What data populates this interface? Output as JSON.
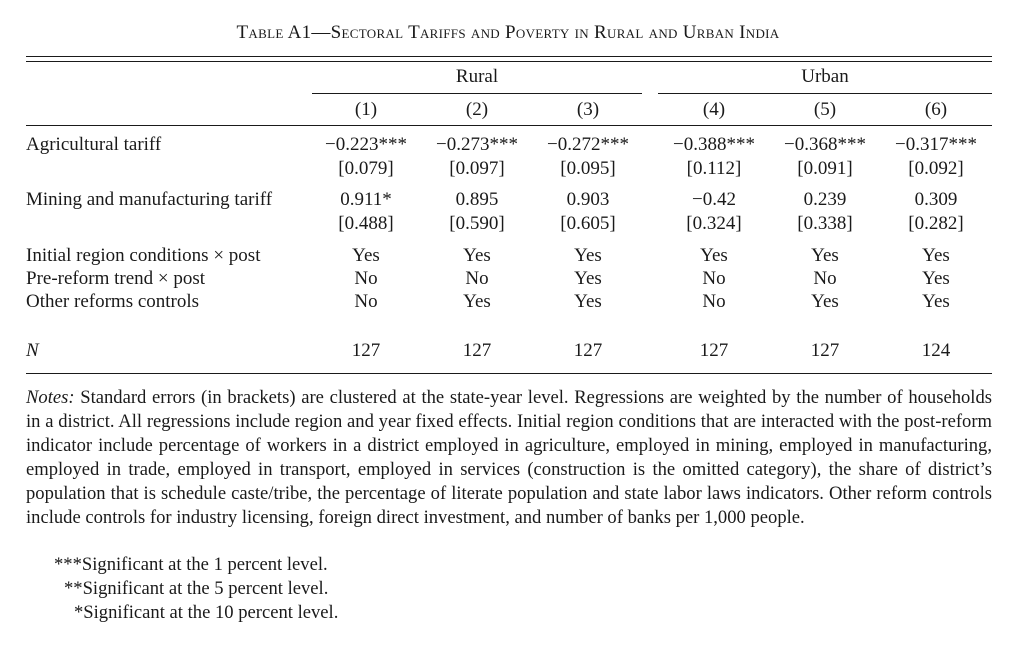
{
  "title": "Table A1—Sectoral Tariffs and Poverty in Rural and Urban India",
  "groups": {
    "rural": "Rural",
    "urban": "Urban"
  },
  "columns": [
    "(1)",
    "(2)",
    "(3)",
    "(4)",
    "(5)",
    "(6)"
  ],
  "rows": [
    {
      "label": "Agricultural tariff",
      "values": [
        "−0.223***",
        "−0.273***",
        "−0.272***",
        "−0.388***",
        "−0.368***",
        "−0.317***"
      ],
      "se": [
        "[0.079]",
        "[0.097]",
        "[0.095]",
        "[0.112]",
        "[0.091]",
        "[0.092]"
      ]
    },
    {
      "label": "Mining and manufacturing tariff",
      "values": [
        "0.911*",
        "0.895",
        "0.903",
        "−0.42",
        "0.239",
        "0.309"
      ],
      "se": [
        "[0.488]",
        "[0.590]",
        "[0.605]",
        "[0.324]",
        "[0.338]",
        "[0.282]"
      ]
    }
  ],
  "controls": [
    {
      "label": "Initial region conditions × post",
      "values": [
        "Yes",
        "Yes",
        "Yes",
        "Yes",
        "Yes",
        "Yes"
      ]
    },
    {
      "label": "Pre-reform trend × post",
      "values": [
        "No",
        "No",
        "Yes",
        "No",
        "No",
        "Yes"
      ]
    },
    {
      "label": "Other reforms controls",
      "values": [
        "No",
        "Yes",
        "Yes",
        "No",
        "Yes",
        "Yes"
      ]
    }
  ],
  "n_row": {
    "label": "N",
    "values": [
      "127",
      "127",
      "127",
      "127",
      "127",
      "124"
    ]
  },
  "notes": {
    "lead": "Notes:",
    "text": " Standard errors (in brackets) are clustered at the state-year level. Regressions are weighted by the number of households in a district. All regressions include region and year fixed effects. Initial region conditions that are interacted with the post-reform indicator include percentage of workers in a district employed in agriculture, employed in mining, employed in manufacturing, employed in trade, employed in transport, employed in services (construction is the omitted category), the share of district’s population that is schedule caste/tribe, the percentage of literate population and state labor laws indicators. Other reform controls include controls for industry licensing, foreign direct investment, and number of banks per 1,000 people.",
    "sig1": "***Significant at the 1 percent level.",
    "sig5": "**Significant at the 5 percent level.",
    "sig10": "*Significant at the 10 percent level."
  }
}
